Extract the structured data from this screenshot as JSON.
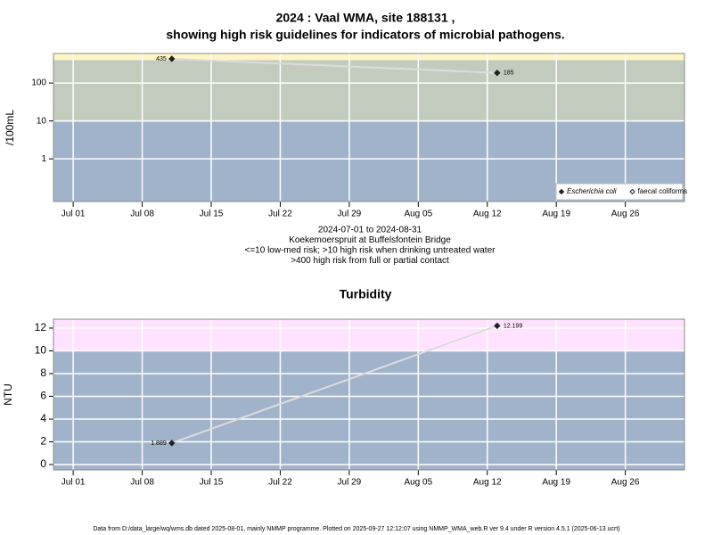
{
  "chart_data": [
    {
      "type": "line",
      "title": [
        "2024 : Vaal WMA, site 188131 ,",
        "showing high risk guidelines for indicators of microbial pathogens."
      ],
      "ylabel": "/100mL",
      "log": true,
      "x": [
        "2024-07-11",
        "2024-08-13"
      ],
      "series": [
        {
          "name": "Escherichia coli",
          "italic": true,
          "marker": "filled",
          "color": "#222222",
          "line_color": "#dcdcdc",
          "values": [
            435,
            185
          ]
        },
        {
          "name": "faecal coliforms",
          "italic": false,
          "marker": "open",
          "color": "#222222",
          "line_color": "#dcdcdc",
          "values": [
            null,
            null
          ]
        }
      ],
      "xlim": [
        "2024-06-29",
        "2024-09-01"
      ],
      "xticks": [
        {
          "value": "2024-07-01",
          "label": "Jul 01"
        },
        {
          "value": "2024-07-08",
          "label": "Jul 08"
        },
        {
          "value": "2024-07-15",
          "label": "Jul 15"
        },
        {
          "value": "2024-07-22",
          "label": "Jul 22"
        },
        {
          "value": "2024-07-29",
          "label": "Jul 29"
        },
        {
          "value": "2024-08-05",
          "label": "Aug 05"
        },
        {
          "value": "2024-08-12",
          "label": "Aug 12"
        },
        {
          "value": "2024-08-19",
          "label": "Aug 19"
        },
        {
          "value": "2024-08-26",
          "label": "Aug 26"
        }
      ],
      "ylim": [
        0.075,
        600
      ],
      "yticks": [
        1,
        10,
        100
      ],
      "thresholds": [
        10,
        400
      ],
      "band_colors": [
        "#a1b3cb",
        "#c3cbbf",
        "#fff5c6"
      ],
      "grid": true,
      "legend": "bottom-right",
      "notes": [
        "2024-07-01 to 2024-08-31",
        "Koekemoerspruit at Buffelsfontein Bridge",
        "<=10 low-med risk; >10 high risk when drinking untreated water",
        ">400 high risk from full or partial contact"
      ]
    },
    {
      "type": "line",
      "title": [
        "Turbidity"
      ],
      "ylabel": "NTU",
      "log": false,
      "x": [
        "2024-07-11",
        "2024-08-13"
      ],
      "series": [
        {
          "marker": "filled",
          "color": "#222222",
          "line_color": "#dcdcdc",
          "values": [
            1.889,
            12.199
          ]
        }
      ],
      "xlim": [
        "2024-06-29",
        "2024-09-01"
      ],
      "xticks": [
        {
          "value": "2024-07-01",
          "label": "Jul 01"
        },
        {
          "value": "2024-07-08",
          "label": "Jul 08"
        },
        {
          "value": "2024-07-15",
          "label": "Jul 15"
        },
        {
          "value": "2024-07-22",
          "label": "Jul 22"
        },
        {
          "value": "2024-07-29",
          "label": "Jul 29"
        },
        {
          "value": "2024-08-05",
          "label": "Aug 05"
        },
        {
          "value": "2024-08-12",
          "label": "Aug 12"
        },
        {
          "value": "2024-08-19",
          "label": "Aug 19"
        },
        {
          "value": "2024-08-26",
          "label": "Aug 26"
        }
      ],
      "ylim": [
        -0.47,
        12.78
      ],
      "yticks": [
        0,
        2,
        4,
        6,
        8,
        10,
        12
      ],
      "thresholds": [
        10
      ],
      "band_colors": [
        "#a1b3cb",
        "#ffe2ff"
      ],
      "grid": true
    }
  ],
  "footer": "Data from D:/data_large/wq/wms.db dated 2025-08-01, mainly NMMP programme. Plotted on 2025-09-27 12:12:07 using NMMP_WMA_web.R ver 9.4 under R version 4.5.1 (2025-06-13 ucrt)"
}
